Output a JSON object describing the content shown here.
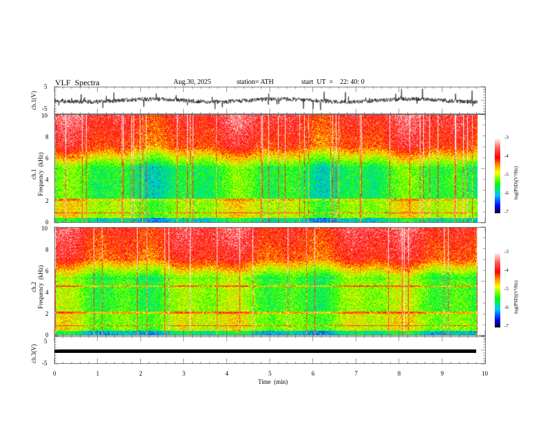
{
  "header": {
    "title": "VLF  Spectra",
    "date": "Aug.30, 2025",
    "station": "station= ATH",
    "start": "start  UT  =    22: 40: 0"
  },
  "chart_data": [
    {
      "type": "line",
      "name": "ch1-waveform",
      "ylabel": "ch.1(V)",
      "ylim": [
        -5,
        5
      ],
      "yticks": [
        "5",
        "-5"
      ],
      "xlim": [
        0,
        10
      ],
      "data_end_min": 9.82,
      "baseline": 0,
      "noise": "broadband impulsive sferics"
    },
    {
      "type": "heatmap",
      "name": "ch1-spectrogram",
      "ylabel": "ch.1\nFrequency  (kHz)",
      "ylim": [
        0,
        10
      ],
      "yticks": [
        "10",
        "8",
        "6",
        "4",
        "2",
        "0"
      ],
      "xlim": [
        0,
        10
      ],
      "colorbar": {
        "label": "log(PSD)(V²/Hz)",
        "range": [
          -7,
          -3
        ],
        "ticks": [
          "-3",
          "-4",
          "-5",
          "-6",
          "-7"
        ]
      }
    },
    {
      "type": "heatmap",
      "name": "ch2-spectrogram",
      "ylabel": "ch.2\nFrequency  (kHz)",
      "ylim": [
        0,
        10
      ],
      "yticks": [
        "10",
        "8",
        "6",
        "4",
        "2",
        "0"
      ],
      "xlim": [
        0,
        10
      ],
      "colorbar": {
        "label": "log(PSD)(V²/Hz)",
        "range": [
          -7,
          -3
        ],
        "ticks": [
          "-3",
          "-4",
          "-5",
          "-6",
          "-7"
        ]
      }
    },
    {
      "type": "line",
      "name": "ch3-waveform",
      "ylabel": "ch.3(V)",
      "ylim": [
        -5,
        5
      ],
      "yticks": [
        "5",
        "-5"
      ],
      "xlim": [
        0,
        10
      ],
      "data_end_min": 9.82,
      "baseline": 0
    },
    {
      "type": "axis",
      "xlabel": "Time  (min)",
      "xticks": [
        "0",
        "1",
        "2",
        "3",
        "4",
        "5",
        "6",
        "7",
        "8",
        "9",
        "10"
      ]
    }
  ]
}
